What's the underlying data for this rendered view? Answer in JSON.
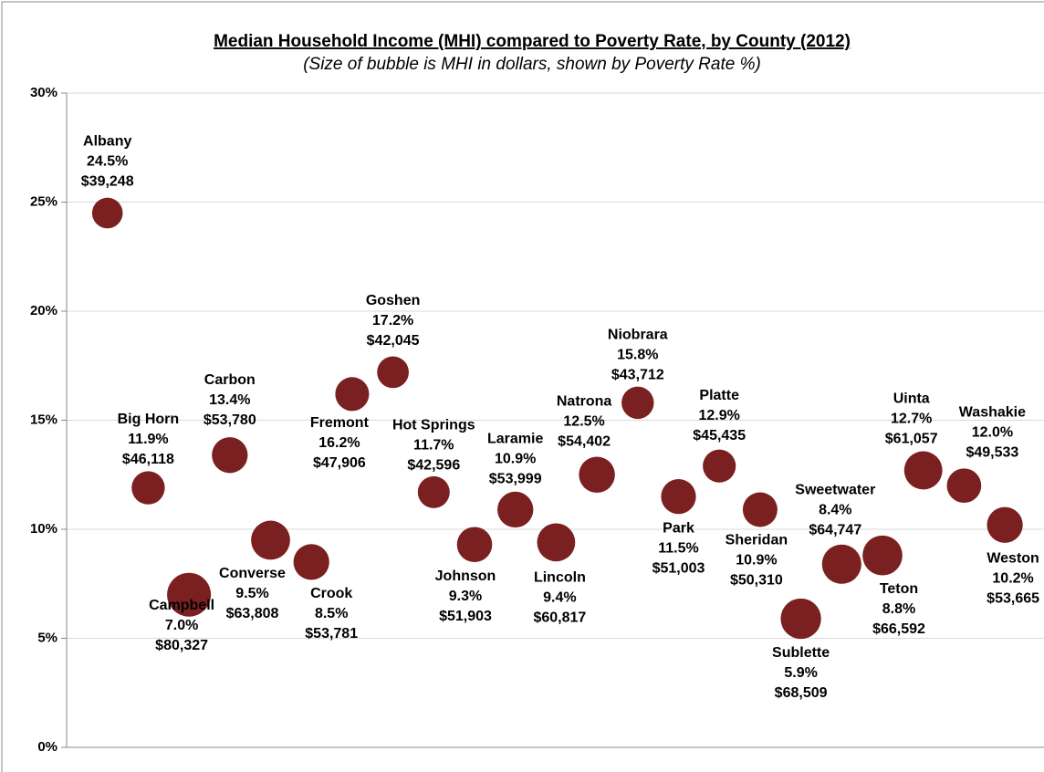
{
  "chart_data": {
    "type": "bubble",
    "title": "Median Household Income (MHI) compared to Poverty Rate, by County (2012)",
    "subtitle": "(Size of bubble is MHI in dollars, shown by Poverty Rate %)",
    "categories": [
      "Albany",
      "Big Horn",
      "Campbell",
      "Carbon",
      "Converse",
      "Crook",
      "Fremont",
      "Goshen",
      "Hot Springs",
      "Johnson",
      "Laramie",
      "Lincoln",
      "Natrona",
      "Niobrara",
      "Park",
      "Platte",
      "Sheridan",
      "Sublette",
      "Sweetwater",
      "Teton",
      "Uinta",
      "Washakie",
      "Weston"
    ],
    "values": [
      24.5,
      11.9,
      7.0,
      13.4,
      9.5,
      8.5,
      16.2,
      17.2,
      11.7,
      9.3,
      10.9,
      9.4,
      12.5,
      15.8,
      11.5,
      12.9,
      10.9,
      5.9,
      8.4,
      8.8,
      12.7,
      12.0,
      10.2
    ],
    "value_labels": [
      "24.5%",
      "11.9%",
      "7.0%",
      "13.4%",
      "9.5%",
      "8.5%",
      "16.2%",
      "17.2%",
      "11.7%",
      "9.3%",
      "10.9%",
      "9.4%",
      "12.5%",
      "15.8%",
      "11.5%",
      "12.9%",
      "10.9%",
      "5.9%",
      "8.4%",
      "8.8%",
      "12.7%",
      "12.0%",
      "10.2%"
    ],
    "sizes": [
      39248,
      46118,
      80327,
      53780,
      63808,
      53781,
      47906,
      42045,
      42596,
      51903,
      53999,
      60817,
      54402,
      43712,
      51003,
      45435,
      50310,
      68509,
      64747,
      66592,
      61057,
      49533,
      53665
    ],
    "size_labels": [
      "$39,248",
      "$46,118",
      "$80,327",
      "$53,780",
      "$63,808",
      "$53,781",
      "$47,906",
      "$42,045",
      "$42,596",
      "$51,903",
      "$53,999",
      "$60,817",
      "$54,402",
      "$43,712",
      "$51,003",
      "$45,435",
      "$50,310",
      "$68,509",
      "$64,747",
      "$66,592",
      "$61,057",
      "$49,533",
      "$53,665"
    ],
    "color": "#7b2020",
    "ylim": [
      0,
      30
    ],
    "yticks": [
      {
        "value": 0,
        "label": "0%"
      },
      {
        "value": 5,
        "label": "5%"
      },
      {
        "value": 10,
        "label": "10%"
      },
      {
        "value": 15,
        "label": "15%"
      },
      {
        "value": 20,
        "label": "20%"
      },
      {
        "value": 25,
        "label": "25%"
      },
      {
        "value": 30,
        "label": "30%"
      }
    ],
    "grid": true
  }
}
